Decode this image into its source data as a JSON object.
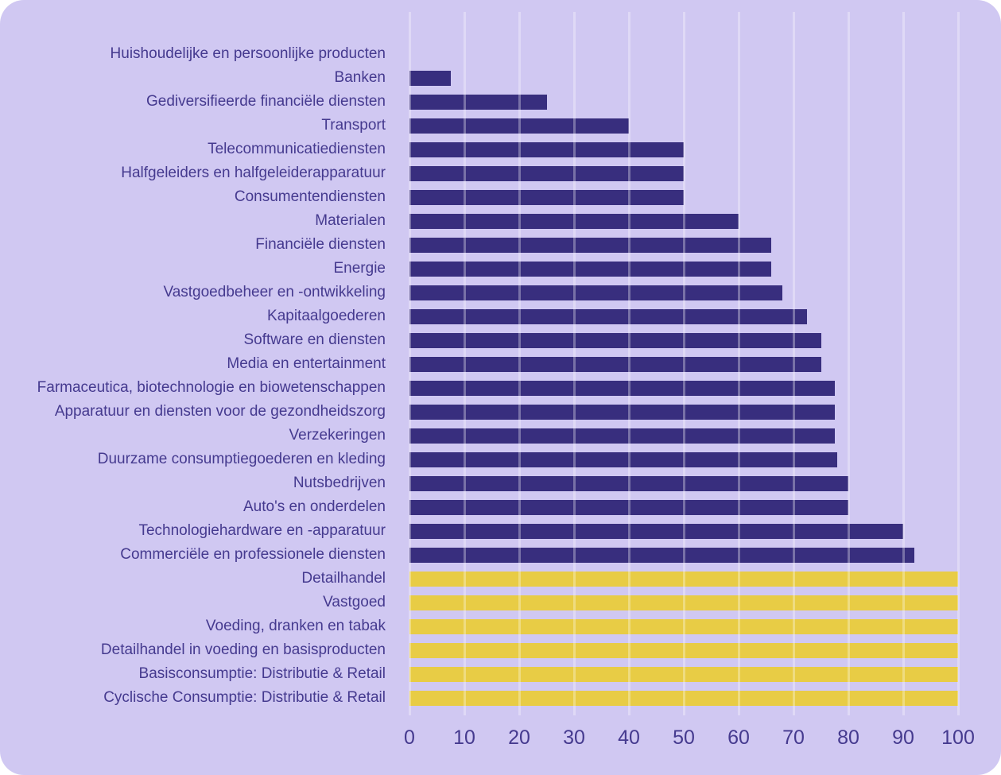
{
  "chart_data": {
    "type": "bar",
    "orientation": "horizontal",
    "title": "",
    "xlabel": "",
    "ylabel": "",
    "xlim": [
      0,
      100
    ],
    "x_ticks": [
      0,
      10,
      20,
      30,
      40,
      50,
      60,
      70,
      80,
      90,
      100
    ],
    "grid": true,
    "legend_position": "none",
    "colors": {
      "purple": "#382e7e",
      "yellow": "#e8cc45",
      "background": "#d0c8f2",
      "gridline": "rgba(255,255,255,0.32)",
      "text": "#453a8f"
    },
    "bars": [
      {
        "label": "Huishoudelijke en persoonlijke producten",
        "value": 0,
        "color_key": "purple"
      },
      {
        "label": "Banken",
        "value": 7.5,
        "color_key": "purple"
      },
      {
        "label": "Gediversifieerde financiële diensten",
        "value": 25,
        "color_key": "purple"
      },
      {
        "label": "Transport",
        "value": 40,
        "color_key": "purple"
      },
      {
        "label": "Telecommunicatiediensten",
        "value": 50,
        "color_key": "purple"
      },
      {
        "label": "Halfgeleiders en halfgeleiderapparatuur",
        "value": 50,
        "color_key": "purple"
      },
      {
        "label": "Consumentendiensten",
        "value": 50,
        "color_key": "purple"
      },
      {
        "label": "Materialen",
        "value": 60,
        "color_key": "purple"
      },
      {
        "label": "Financiële diensten",
        "value": 66,
        "color_key": "purple"
      },
      {
        "label": "Energie",
        "value": 66,
        "color_key": "purple"
      },
      {
        "label": "Vastgoedbeheer en -ontwikkeling",
        "value": 68,
        "color_key": "purple"
      },
      {
        "label": "Kapitaalgoederen",
        "value": 72.5,
        "color_key": "purple"
      },
      {
        "label": "Software en diensten",
        "value": 75,
        "color_key": "purple"
      },
      {
        "label": "Media en entertainment",
        "value": 75,
        "color_key": "purple"
      },
      {
        "label": "Farmaceutica, biotechnologie en biowetenschappen",
        "value": 77.5,
        "color_key": "purple"
      },
      {
        "label": "Apparatuur en diensten voor de gezondheidszorg",
        "value": 77.5,
        "color_key": "purple"
      },
      {
        "label": "Verzekeringen",
        "value": 77.5,
        "color_key": "purple"
      },
      {
        "label": "Duurzame consumptiegoederen en kleding",
        "value": 78,
        "color_key": "purple"
      },
      {
        "label": "Nutsbedrijven",
        "value": 80,
        "color_key": "purple"
      },
      {
        "label": "Auto's en onderdelen",
        "value": 80,
        "color_key": "purple"
      },
      {
        "label": "Technologiehardware en -apparatuur",
        "value": 90,
        "color_key": "purple"
      },
      {
        "label": "Commerciële en professionele diensten",
        "value": 92,
        "color_key": "purple"
      },
      {
        "label": "Detailhandel",
        "value": 100,
        "color_key": "yellow"
      },
      {
        "label": "Vastgoed",
        "value": 100,
        "color_key": "yellow"
      },
      {
        "label": "Voeding, dranken en tabak",
        "value": 100,
        "color_key": "yellow"
      },
      {
        "label": "Detailhandel in voeding en basisproducten",
        "value": 100,
        "color_key": "yellow"
      },
      {
        "label": "Basisconsumptie: Distributie & Retail",
        "value": 100,
        "color_key": "yellow"
      },
      {
        "label": "Cyclische Consumptie: Distributie & Retail",
        "value": 100,
        "color_key": "yellow"
      }
    ]
  }
}
